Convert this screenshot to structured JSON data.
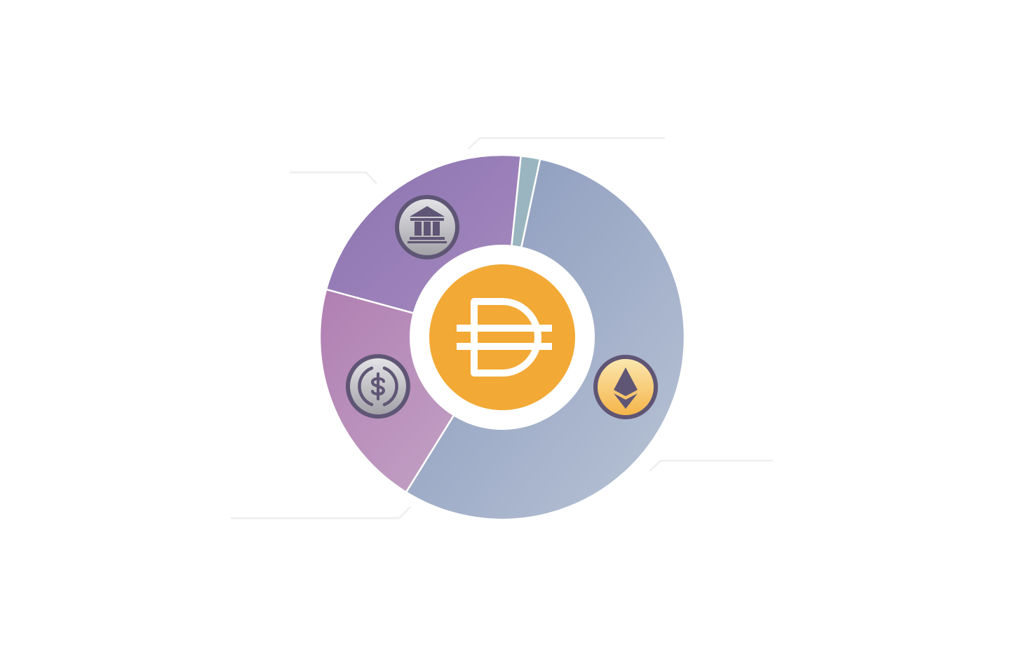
{
  "chart_data": {
    "type": "pie",
    "title": "",
    "labels": [],
    "slices": [
      {
        "icon": "ethereum-icon",
        "value": 55.5,
        "color_start": "#8796bb",
        "color_end": "#b9c4d5"
      },
      {
        "icon": "usd-coin-icon",
        "value": 20.4,
        "color_start": "#b07fb2",
        "color_end": "#c5a6c7"
      },
      {
        "icon": "bank-icon",
        "value": 22.4,
        "color_start": "#8a74b0",
        "color_end": "#a98ac0"
      },
      {
        "icon": "",
        "value": 1.7,
        "color_start": "#9ab5bf",
        "color_end": "#9ab5bf"
      }
    ],
    "center_icon": "dai-logo",
    "colors": {
      "dai": "#f2a935",
      "icon_ring": "#5f5575",
      "leader_line": "#eeeeee"
    }
  }
}
